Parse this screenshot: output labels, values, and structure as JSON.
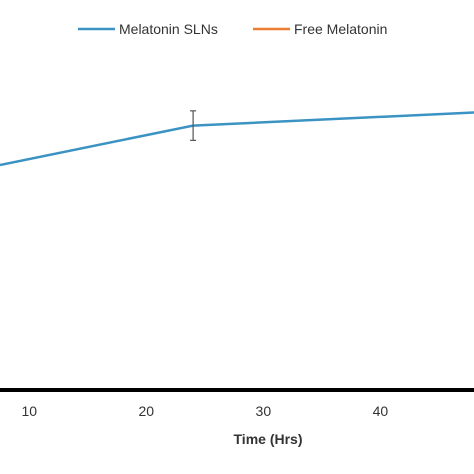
{
  "chart_data": {
    "type": "line",
    "xlabel": "Time (Hrs)",
    "x_ticks": [
      10,
      20,
      30,
      40
    ],
    "xlim": [
      7.5,
      48
    ],
    "ylim": [
      0,
      1
    ],
    "legend_position": "top",
    "series": [
      {
        "name": "Melatonin SLNs",
        "color": "#3b93c3",
        "points": [
          {
            "x": 7.5,
            "y": 0.68
          },
          {
            "x": 24,
            "y": 0.8,
            "error": 0.045
          },
          {
            "x": 48,
            "y": 0.84
          }
        ]
      },
      {
        "name": "Free Melatonin",
        "color": "#ed7d31",
        "points": []
      }
    ]
  }
}
